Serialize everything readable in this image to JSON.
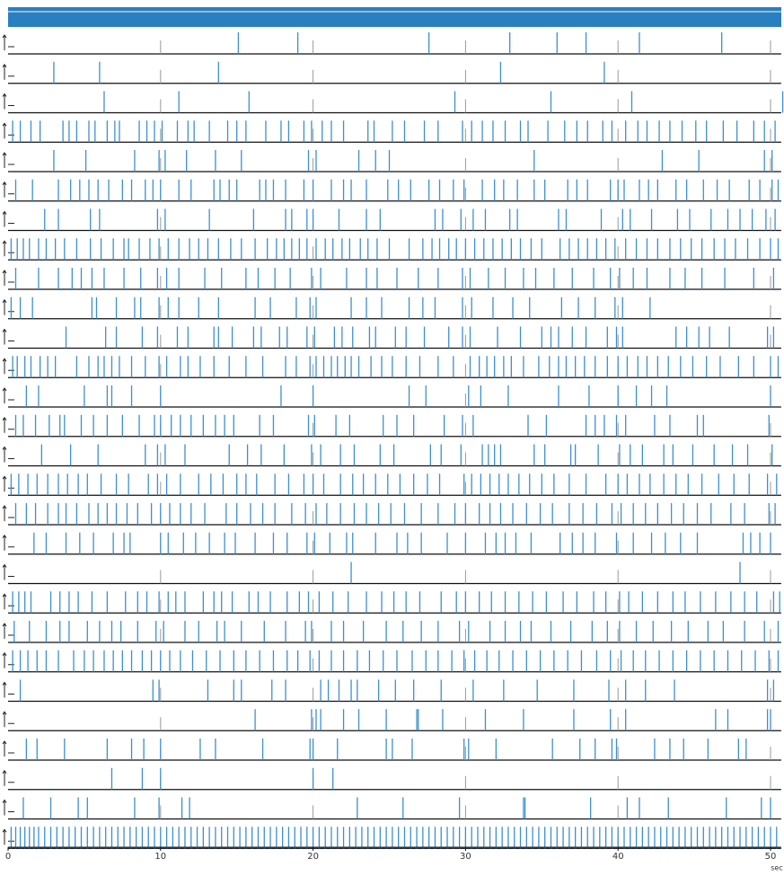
{
  "chart_data": {
    "type": "raster",
    "xlabel": "sec",
    "color": "#3d8fcf",
    "xlim": [
      0,
      50.7
    ],
    "xticks": [
      0,
      10,
      20,
      30,
      40,
      50
    ],
    "series": [
      {
        "values": [
          15.1,
          19.0,
          27.6,
          32.9,
          36.0,
          37.9,
          41.4,
          46.8
        ]
      },
      {
        "values": [
          3.0,
          6.0,
          13.8,
          32.3,
          39.1
        ]
      },
      {
        "values": [
          6.3,
          11.2,
          15.8,
          29.3,
          35.6,
          40.9,
          50.8
        ]
      },
      {
        "values": [
          0.3,
          0.8,
          1.5,
          2.1,
          3.6,
          4.0,
          4.5,
          5.3,
          5.7,
          6.5,
          7.0,
          7.3,
          8.6,
          9.1,
          9.6,
          10.1,
          11.1,
          11.8,
          12.2,
          13.2,
          14.4,
          15.0,
          15.6,
          16.9,
          17.9,
          18.4,
          19.4,
          19.9,
          20.6,
          21.2,
          22.0,
          23.6,
          24.0,
          25.2,
          26.0,
          27.3,
          28.2,
          29.8,
          30.4,
          31.1,
          31.8,
          32.6,
          33.6,
          34.1,
          35.4,
          36.5,
          37.3,
          38.0,
          39.0,
          39.6,
          40.5,
          41.3,
          41.9,
          42.7,
          43.4,
          44.2,
          45.1,
          45.8,
          46.9,
          47.8,
          48.9,
          49.6,
          50.3
        ]
      },
      {
        "values": [
          3.0,
          5.1,
          8.3,
          9.9,
          10.3,
          11.7,
          13.6,
          15.3,
          19.7,
          20.2,
          23.0,
          24.1,
          25.0,
          34.5,
          42.9,
          45.3,
          49.6,
          50.1
        ]
      },
      {
        "values": [
          0.5,
          1.6,
          3.3,
          4.1,
          4.7,
          5.3,
          5.9,
          6.6,
          7.5,
          8.1,
          9.0,
          9.5,
          10.0,
          11.2,
          12.0,
          13.5,
          13.9,
          14.5,
          15.0,
          16.5,
          16.9,
          17.4,
          18.2,
          19.4,
          20.0,
          21.2,
          22.0,
          22.5,
          23.5,
          24.9,
          25.6,
          26.4,
          27.6,
          28.3,
          29.2,
          29.9,
          31.1,
          31.9,
          32.5,
          33.4,
          34.5,
          35.2,
          36.7,
          37.3,
          38.0,
          39.5,
          40.0,
          40.4,
          41.4,
          42.0,
          42.6,
          43.8,
          44.5,
          45.6,
          46.5,
          47.3,
          48.6,
          49.3,
          50.1,
          50.5
        ]
      },
      {
        "values": [
          2.4,
          3.3,
          5.4,
          6.0,
          9.8,
          10.3,
          13.2,
          16.1,
          18.2,
          18.6,
          19.6,
          20.0,
          21.7,
          23.5,
          24.4,
          28.0,
          28.5,
          29.7,
          30.5,
          31.3,
          32.9,
          33.4,
          36.1,
          36.6,
          38.9,
          40.3,
          40.8,
          42.2,
          43.9,
          44.7,
          46.1,
          47.2,
          48.0,
          48.8,
          49.7,
          50.3
        ]
      },
      {
        "values": [
          0.2,
          0.6,
          1.0,
          1.4,
          2.0,
          2.5,
          3.1,
          3.7,
          4.5,
          5.4,
          6.1,
          6.9,
          7.6,
          7.9,
          8.6,
          9.3,
          9.9,
          10.5,
          11.2,
          11.9,
          12.5,
          13.1,
          13.8,
          14.6,
          15.3,
          16.2,
          17.0,
          17.6,
          18.1,
          18.6,
          19.1,
          19.6,
          20.2,
          20.8,
          21.3,
          21.9,
          22.4,
          23.1,
          23.6,
          24.2,
          25.0,
          26.3,
          27.2,
          27.8,
          28.3,
          28.9,
          29.4,
          30.0,
          30.6,
          31.2,
          31.8,
          32.4,
          33.0,
          33.6,
          34.3,
          35.0,
          36.2,
          36.8,
          37.4,
          38.0,
          38.6,
          39.2,
          39.8,
          40.5,
          41.2,
          41.9,
          42.6,
          43.4,
          44.1,
          44.8,
          45.5,
          46.3,
          47.0,
          47.7,
          48.5,
          49.3,
          50.0,
          50.5
        ]
      },
      {
        "values": [
          0.5,
          2.0,
          3.3,
          4.2,
          4.8,
          5.5,
          6.3,
          7.6,
          8.7,
          9.8,
          10.4,
          11.2,
          12.9,
          14.0,
          15.6,
          16.4,
          17.5,
          18.5,
          19.9,
          20.5,
          22.2,
          23.5,
          24.2,
          25.5,
          26.9,
          28.2,
          29.8,
          30.3,
          31.5,
          32.6,
          33.8,
          34.6,
          35.8,
          37.0,
          38.4,
          39.5,
          40.1,
          41.0,
          41.9,
          43.4,
          44.4,
          45.5,
          47.0,
          48.9,
          50.2
        ]
      },
      {
        "values": [
          0.2,
          0.8,
          1.6,
          5.5,
          5.8,
          7.1,
          8.3,
          8.7,
          9.9,
          10.5,
          11.2,
          12.5,
          13.8,
          16.2,
          17.2,
          18.9,
          19.8,
          20.2,
          22.5,
          23.5,
          24.5,
          26.3,
          27.2,
          28.0,
          29.8,
          30.4,
          31.8,
          33.1,
          34.2,
          36.3,
          37.4,
          38.5,
          39.8,
          40.3,
          42.1
        ]
      },
      {
        "values": [
          3.8,
          6.4,
          7.1,
          8.8,
          9.8,
          11.1,
          11.8,
          13.5,
          13.8,
          14.7,
          16.1,
          16.6,
          17.8,
          18.3,
          19.6,
          20.1,
          21.4,
          21.9,
          22.6,
          23.7,
          24.1,
          25.4,
          26.1,
          27.3,
          28.9,
          29.8,
          30.3,
          32.1,
          33.6,
          35.0,
          35.6,
          36.1,
          37.0,
          37.9,
          39.3,
          39.9,
          40.3,
          43.8,
          44.5,
          45.3,
          46.0,
          47.3,
          49.8,
          50.2
        ]
      },
      {
        "values": [
          0.3,
          0.6,
          1.1,
          1.5,
          2.1,
          2.6,
          3.1,
          4.5,
          5.3,
          5.9,
          6.3,
          6.8,
          7.3,
          8.1,
          9.0,
          9.9,
          10.4,
          11.3,
          11.8,
          12.6,
          13.5,
          14.5,
          15.6,
          16.7,
          18.2,
          18.9,
          19.8,
          20.2,
          20.7,
          21.2,
          21.6,
          22.1,
          22.5,
          23.0,
          23.8,
          24.5,
          25.2,
          26.1,
          27.0,
          28.2,
          29.2,
          30.3,
          30.9,
          31.4,
          31.9,
          32.5,
          33.0,
          33.8,
          34.8,
          35.5,
          36.1,
          36.6,
          37.2,
          37.8,
          38.5,
          39.3,
          40.0,
          40.6,
          41.3,
          41.9,
          42.6,
          43.3,
          44.1,
          44.9,
          45.8,
          46.7,
          47.9,
          48.9,
          50.0,
          50.5
        ]
      },
      {
        "values": [
          1.2,
          2.0,
          5.0,
          6.5,
          6.8,
          8.1,
          10.0,
          17.9,
          20.0,
          26.3,
          27.4,
          30.2,
          31.0,
          32.8,
          36.1,
          38.1,
          40.0,
          41.2,
          42.2,
          43.2,
          50.0
        ]
      },
      {
        "values": [
          0.5,
          1.0,
          1.8,
          2.7,
          3.4,
          3.7,
          4.8,
          5.6,
          6.5,
          7.5,
          8.6,
          9.6,
          10.0,
          10.7,
          11.3,
          12.0,
          12.8,
          13.6,
          14.2,
          14.8,
          16.5,
          17.4,
          19.7,
          20.1,
          21.5,
          22.4,
          24.6,
          25.5,
          26.6,
          28.6,
          29.8,
          30.5,
          34.1,
          35.3,
          37.9,
          38.5,
          39.1,
          39.9,
          40.5,
          42.4,
          43.4,
          45.2,
          45.6,
          49.9
        ]
      },
      {
        "values": [
          2.2,
          4.1,
          5.9,
          9.0,
          9.8,
          10.3,
          11.6,
          14.5,
          15.7,
          16.6,
          18.1,
          19.9,
          20.5,
          21.8,
          22.7,
          24.4,
          25.3,
          27.7,
          28.4,
          29.7,
          31.1,
          31.5,
          31.9,
          32.3,
          34.5,
          35.2,
          36.9,
          37.2,
          38.7,
          40.1,
          40.8,
          41.6,
          43.0,
          43.6,
          44.9,
          46.3,
          47.5,
          48.5,
          50.1
        ]
      },
      {
        "values": [
          0.2,
          0.7,
          1.3,
          1.9,
          2.6,
          3.3,
          3.9,
          4.6,
          5.2,
          6.1,
          7.1,
          7.9,
          9.2,
          9.8,
          10.4,
          11.3,
          12.5,
          13.3,
          14.1,
          15.0,
          15.6,
          16.3,
          17.5,
          18.4,
          19.4,
          20.0,
          20.7,
          21.8,
          22.6,
          23.3,
          24.1,
          24.9,
          25.7,
          26.6,
          27.5,
          28.3,
          29.9,
          30.4,
          31.0,
          31.6,
          32.2,
          32.8,
          33.5,
          34.2,
          35.0,
          35.8,
          36.8,
          37.9,
          39.2,
          40.0,
          40.6,
          41.4,
          42.1,
          43.0,
          43.8,
          44.6,
          45.5,
          46.6,
          47.6,
          48.6,
          49.8,
          50.4
        ]
      },
      {
        "values": [
          0.5,
          1.2,
          1.8,
          2.6,
          3.3,
          3.8,
          4.5,
          5.3,
          5.9,
          6.5,
          7.1,
          7.8,
          8.5,
          9.4,
          10.0,
          10.6,
          11.3,
          12.0,
          12.9,
          14.3,
          15.0,
          15.9,
          16.7,
          17.5,
          18.6,
          19.5,
          20.2,
          20.9,
          21.8,
          22.7,
          23.5,
          24.3,
          25.1,
          26.0,
          27.1,
          28.2,
          29.3,
          30.0,
          30.9,
          31.6,
          32.3,
          33.1,
          34.0,
          34.9,
          35.7,
          36.8,
          37.7,
          38.6,
          39.6,
          40.2,
          41.0,
          41.8,
          42.6,
          43.5,
          44.3,
          45.2,
          46.1,
          47.4,
          48.3,
          49.9,
          50.3
        ]
      },
      {
        "values": [
          1.7,
          2.5,
          3.8,
          4.7,
          5.6,
          6.9,
          7.6,
          8.0,
          10.0,
          10.5,
          11.5,
          12.3,
          13.2,
          14.2,
          14.9,
          16.2,
          17.4,
          18.3,
          19.6,
          20.1,
          21.1,
          22.2,
          22.6,
          24.1,
          25.5,
          26.2,
          27.1,
          28.8,
          30.0,
          31.3,
          32.0,
          32.6,
          33.3,
          34.3,
          36.2,
          37.0,
          37.7,
          38.5,
          39.9,
          41.0,
          42.2,
          43.1,
          44.1,
          45.2,
          48.2,
          48.7,
          49.3,
          50.0
        ]
      },
      {
        "values": [
          22.5,
          48.0
        ]
      },
      {
        "values": [
          0.3,
          0.7,
          1.1,
          1.5,
          2.8,
          3.4,
          4.0,
          4.6,
          5.5,
          6.5,
          7.7,
          8.5,
          9.1,
          9.9,
          10.5,
          11.0,
          11.6,
          12.8,
          13.5,
          14.0,
          14.7,
          15.8,
          16.4,
          17.2,
          18.3,
          19.1,
          19.7,
          20.4,
          21.3,
          22.3,
          23.5,
          24.5,
          25.3,
          26.1,
          27.0,
          28.4,
          29.4,
          30.0,
          30.9,
          31.7,
          32.6,
          33.5,
          34.4,
          35.3,
          36.4,
          37.3,
          38.4,
          39.2,
          40.1,
          40.7,
          41.6,
          42.6,
          43.6,
          44.4,
          45.4,
          46.4,
          47.4,
          48.3,
          49.1,
          50.2,
          50.6
        ]
      },
      {
        "values": [
          0.4,
          1.4,
          2.5,
          3.4,
          4.0,
          5.2,
          6.0,
          6.8,
          7.4,
          8.5,
          9.7,
          10.2,
          11.6,
          12.5,
          13.7,
          14.2,
          15.3,
          16.8,
          18.2,
          19.5,
          19.9,
          21.2,
          22.0,
          23.3,
          24.8,
          25.9,
          27.1,
          28.2,
          29.6,
          30.2,
          31.6,
          32.6,
          33.6,
          34.3,
          35.6,
          36.9,
          38.3,
          39.3,
          40.1,
          41.2,
          42.3,
          43.5,
          44.6,
          45.9,
          46.9,
          48.3,
          49.6,
          50.5
        ]
      },
      {
        "values": [
          0.3,
          0.8,
          1.3,
          1.9,
          2.5,
          3.3,
          4.3,
          5.0,
          5.6,
          6.3,
          6.9,
          7.5,
          8.1,
          8.8,
          9.4,
          10.0,
          10.6,
          11.3,
          12.1,
          13.0,
          13.9,
          14.8,
          15.6,
          16.5,
          17.4,
          18.3,
          19.0,
          19.8,
          20.4,
          21.2,
          22.0,
          22.9,
          23.7,
          24.6,
          25.5,
          26.5,
          27.4,
          28.2,
          29.1,
          29.9,
          30.6,
          31.4,
          32.2,
          33.1,
          34.0,
          34.9,
          35.8,
          36.7,
          37.6,
          38.6,
          39.5,
          40.2,
          41.0,
          41.8,
          42.7,
          43.6,
          44.5,
          45.4,
          46.3,
          47.2,
          48.1,
          49.0,
          49.9,
          50.5
        ]
      },
      {
        "values": [
          0.8,
          9.5,
          9.9,
          13.1,
          14.8,
          15.3,
          17.3,
          18.2,
          20.5,
          21.0,
          21.7,
          22.5,
          22.9,
          24.3,
          25.4,
          26.6,
          28.4,
          30.5,
          32.5,
          34.7,
          37.1,
          39.4,
          40.5,
          41.8,
          43.7,
          49.8,
          50.2
        ]
      },
      {
        "values": [
          16.2,
          19.9,
          20.2,
          20.5,
          22.0,
          23.0,
          24.8,
          26.8,
          26.9,
          28.5,
          31.3,
          33.8,
          37.1,
          39.5,
          40.5,
          46.4,
          47.2,
          49.8,
          50.0
        ]
      },
      {
        "values": [
          1.2,
          1.9,
          3.7,
          6.5,
          8.1,
          8.9,
          10.0,
          12.6,
          13.6,
          16.7,
          19.8,
          20.0,
          21.6,
          24.8,
          25.2,
          26.5,
          29.9,
          30.2,
          32.0,
          35.7,
          37.5,
          38.5,
          39.6,
          39.9,
          42.4,
          43.4,
          44.3,
          45.9,
          47.9,
          48.4
        ]
      },
      {
        "values": [
          6.8,
          8.8,
          10.0,
          20.0,
          21.3
        ]
      },
      {
        "values": [
          1.0,
          2.8,
          4.6,
          5.2,
          8.3,
          9.9,
          11.4,
          11.9,
          22.9,
          25.9,
          29.6,
          33.8,
          33.9,
          38.2,
          40.6,
          41.4,
          43.3,
          47.1,
          49.4,
          50.0
        ]
      },
      {
        "values": [
          0.2,
          0.5,
          0.8,
          1.1,
          1.4,
          1.7,
          2.0,
          2.4,
          2.8,
          3.2,
          3.6,
          4.0,
          4.4,
          4.8,
          5.2,
          5.6,
          6.0,
          6.4,
          6.8,
          7.2,
          7.6,
          8.0,
          8.4,
          8.8,
          9.2,
          9.6,
          10.0,
          10.4,
          10.8,
          11.2,
          11.6,
          12.0,
          12.4,
          12.8,
          13.2,
          13.6,
          14.0,
          14.4,
          14.8,
          15.2,
          15.6,
          16.0,
          16.4,
          16.8,
          17.2,
          17.6,
          18.0,
          18.4,
          18.8,
          19.2,
          19.6,
          20.0,
          20.4,
          20.8,
          21.2,
          21.6,
          22.0,
          22.4,
          22.8,
          23.2,
          23.6,
          24.0,
          24.4,
          24.8,
          25.2,
          25.6,
          26.0,
          26.4,
          26.8,
          27.2,
          27.6,
          28.0,
          28.4,
          28.8,
          29.2,
          29.6,
          30.0,
          30.4,
          30.8,
          31.2,
          31.6,
          32.0,
          32.4,
          32.8,
          33.2,
          33.6,
          34.0,
          34.4,
          34.8,
          35.2,
          35.6,
          36.0,
          36.4,
          36.8,
          37.2,
          37.6,
          38.0,
          38.4,
          38.8,
          39.2,
          39.6,
          40.0,
          40.4,
          40.8,
          41.2,
          41.6,
          42.0,
          42.4,
          42.8,
          43.2,
          43.6,
          44.0,
          44.4,
          44.8,
          45.2,
          45.6,
          46.0,
          46.4,
          46.8,
          47.2,
          47.6,
          48.0,
          48.4,
          48.8,
          49.2,
          49.6,
          50.0,
          50.4
        ]
      }
    ]
  }
}
